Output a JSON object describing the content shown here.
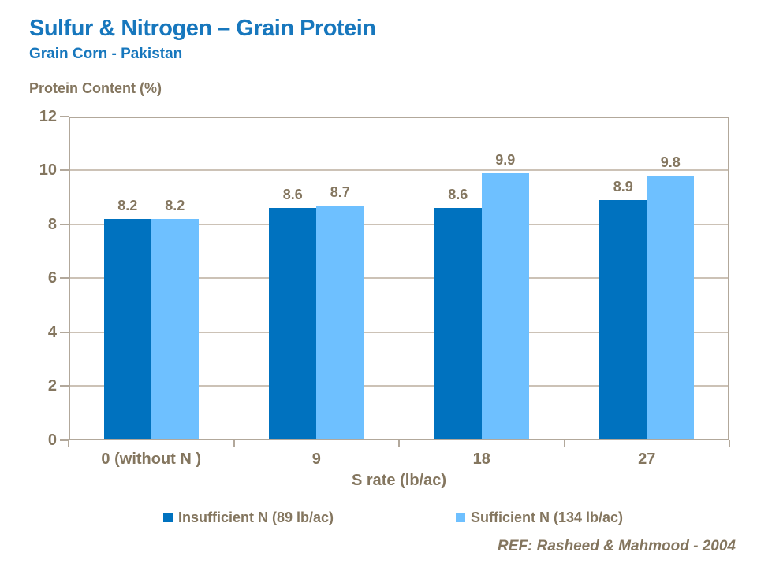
{
  "header": {
    "title": "Sulfur & Nitrogen – Grain Protein",
    "subtitle": "Grain Corn - Pakistan"
  },
  "chart_data": {
    "type": "bar",
    "title": "Sulfur & Nitrogen – Grain Protein",
    "subtitle": "Grain Corn - Pakistan",
    "ylabel": "Protein Content (%)",
    "xlabel": "S rate (lb/ac)",
    "categories": [
      "0 (without N )",
      "9",
      "18",
      "27"
    ],
    "series": [
      {
        "name": "Insufficient N (89 lb/ac)",
        "color": "#0072BF",
        "values": [
          8.2,
          8.6,
          8.6,
          8.9
        ]
      },
      {
        "name": "Sufficient N (134 lb/ac)",
        "color": "#6EC0FF",
        "values": [
          8.2,
          8.7,
          9.9,
          9.8
        ]
      }
    ],
    "ylim": [
      0,
      12
    ],
    "yticks": [
      0,
      2,
      4,
      6,
      8,
      10,
      12
    ],
    "grid": true,
    "legend_position": "bottom",
    "value_label_decimals": 1
  },
  "footer": {
    "ref": "REF: Rasheed & Mahmood - 2004"
  },
  "colors": {
    "title_blue": "#1777BD",
    "text_brown": "#84765F",
    "axis_line": "#B2A89B",
    "gridline": "#CCC2B6",
    "series_dark": "#0072BF",
    "series_light": "#6EC0FF",
    "background": "#FFFFFF"
  }
}
